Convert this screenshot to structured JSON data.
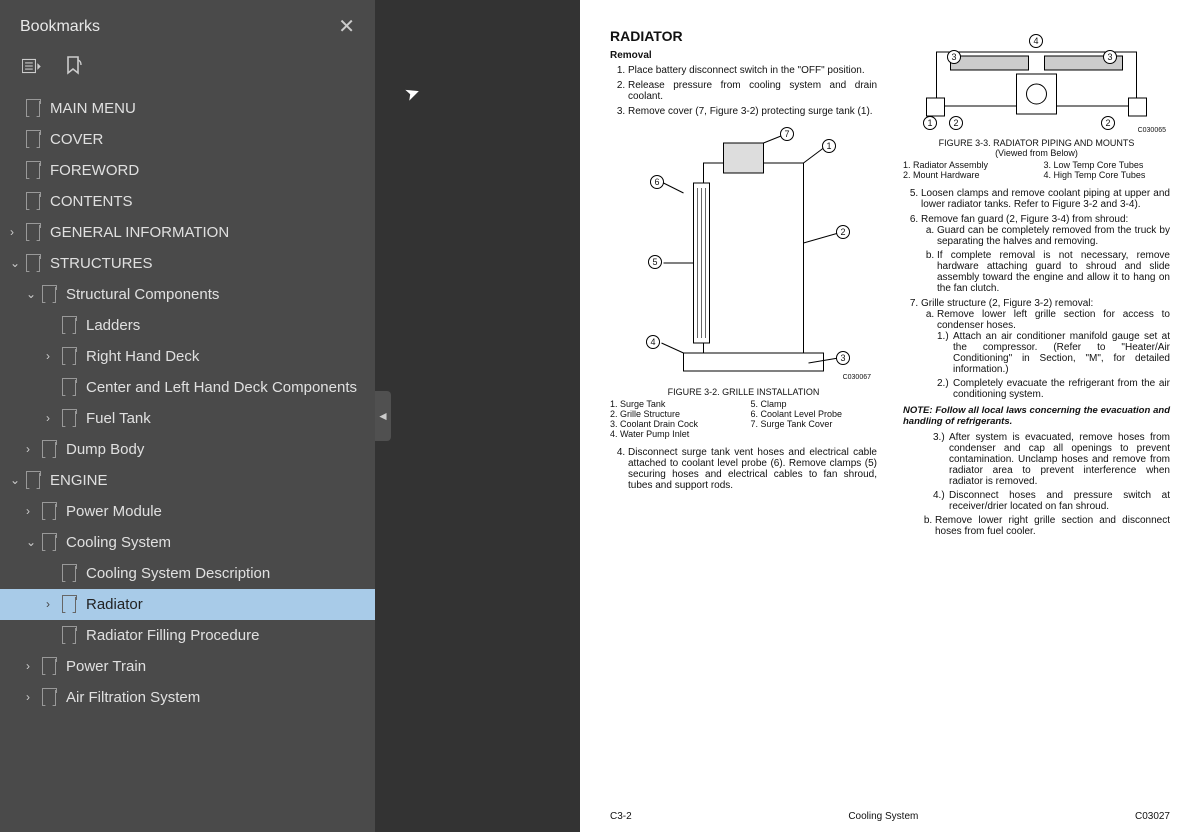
{
  "sidebar": {
    "title": "Bookmarks",
    "tree": [
      {
        "label": "MAIN MENU",
        "depth": 0,
        "chev": ""
      },
      {
        "label": "COVER",
        "depth": 0,
        "chev": ""
      },
      {
        "label": "FOREWORD",
        "depth": 0,
        "chev": ""
      },
      {
        "label": "CONTENTS",
        "depth": 0,
        "chev": ""
      },
      {
        "label": "GENERAL INFORMATION",
        "depth": 0,
        "chev": ">"
      },
      {
        "label": "STRUCTURES",
        "depth": 0,
        "chev": "v"
      },
      {
        "label": "Structural Components",
        "depth": 1,
        "chev": "v"
      },
      {
        "label": "Ladders",
        "depth": 2,
        "chev": ""
      },
      {
        "label": "Right Hand Deck",
        "depth": 2,
        "chev": ">"
      },
      {
        "label": "Center and Left Hand Deck Components",
        "depth": 2,
        "chev": ""
      },
      {
        "label": "Fuel Tank",
        "depth": 2,
        "chev": ">"
      },
      {
        "label": "Dump Body",
        "depth": 1,
        "chev": ">"
      },
      {
        "label": "ENGINE",
        "depth": 0,
        "chev": "v"
      },
      {
        "label": "Power Module",
        "depth": 1,
        "chev": ">"
      },
      {
        "label": "Cooling System",
        "depth": 1,
        "chev": "v"
      },
      {
        "label": "Cooling System Description",
        "depth": 2,
        "chev": ""
      },
      {
        "label": "Radiator",
        "depth": 2,
        "chev": ">",
        "selected": true
      },
      {
        "label": "Radiator Filling Procedure",
        "depth": 2,
        "chev": ""
      },
      {
        "label": "Power Train",
        "depth": 1,
        "chev": ">"
      },
      {
        "label": "Air Filtration System",
        "depth": 1,
        "chev": ">"
      }
    ]
  },
  "doc": {
    "title": "RADIATOR",
    "section": "Removal",
    "colA_steps": [
      "Place battery disconnect switch in the \"OFF\" position.",
      "Release pressure from cooling system and drain coolant.",
      "Remove cover (7, Figure 3-2) protecting surge tank (1)."
    ],
    "fig32": {
      "caption": "FIGURE 3-2. GRILLE INSTALLATION",
      "code": "C030067",
      "legend_left": [
        "1. Surge Tank",
        "2. Grille Structure",
        "3. Coolant Drain Cock",
        "4. Water Pump Inlet"
      ],
      "legend_right": [
        "5. Clamp",
        "6. Coolant Level Probe",
        "7. Surge Tank Cover"
      ]
    },
    "step4": "Disconnect surge tank vent hoses and electrical cable attached to coolant level probe (6). Remove clamps (5) securing hoses and electrical cables to fan shroud, tubes and support rods.",
    "fig33": {
      "caption_l1": "FIGURE 3-3. RADIATOR PIPING AND MOUNTS",
      "caption_l2": "(Viewed from Below)",
      "code": "C030065",
      "legend_left": [
        "1. Radiator Assembly",
        "2. Mount Hardware"
      ],
      "legend_right": [
        "3. Low Temp Core Tubes",
        "4. High Temp Core Tubes"
      ]
    },
    "step5": "Loosen clamps and remove coolant piping at upper and lower radiator tanks. Refer to Figure 3-2 and 3-4).",
    "step6": "Remove fan guard (2, Figure 3-4) from shroud:",
    "step6a": "Guard can be completely removed from the truck by separating the halves and removing.",
    "step6b": "If complete removal is not necessary, remove hardware attaching guard to shroud and slide assembly toward the engine and allow it to hang on the fan clutch.",
    "step7": "Grille structure (2, Figure 3-2) removal:",
    "step7a": "Remove lower left grille section for access to condenser hoses.",
    "step7a1": "Attach an air conditioner manifold gauge set at the compressor. (Refer to \"Heater/Air Conditioning\" in Section, \"M\", for detailed information.)",
    "step7a2": "Completely evacuate the refrigerant from the air conditioning system.",
    "note": "NOTE: Follow all local laws concerning the evacuation and handling of refrigerants.",
    "step7a3": "After system is evacuated, remove hoses from condenser and cap all openings to prevent contamination. Unclamp hoses and remove from radiator area to prevent interference when radiator is removed.",
    "step7a4": "Disconnect hoses and pressure switch at receiver/drier located on fan shroud.",
    "step7b": "Remove lower right grille section and disconnect hoses from fuel cooler.",
    "footer": {
      "left": "C3-2",
      "center": "Cooling System",
      "right": "C03027"
    }
  }
}
